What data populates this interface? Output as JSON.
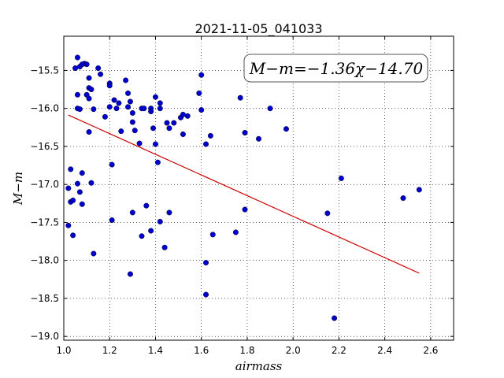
{
  "chart_data": {
    "type": "scatter",
    "title": "2021-11-05_041033",
    "xlabel": "airmass",
    "ylabel": "M−m",
    "annotation": "M−m=−1.36χ−14.70",
    "xlim": [
      1.0,
      2.7
    ],
    "ylim": [
      -19.05,
      -15.05
    ],
    "ylim_inverted": true,
    "xticks": [
      1.0,
      1.2,
      1.4,
      1.6,
      1.8,
      2.0,
      2.2,
      2.4,
      2.6
    ],
    "xtick_labels": [
      "1.0",
      "1.2",
      "1.4",
      "1.6",
      "1.8",
      "2.0",
      "2.2",
      "2.4",
      "2.6"
    ],
    "yticks": [
      -15.5,
      -16.0,
      -16.5,
      -17.0,
      -17.5,
      -18.0,
      -18.5,
      -19.0
    ],
    "ytick_labels": [
      "−15.5",
      "−16.0",
      "−16.5",
      "−17.0",
      "−17.5",
      "−18.0",
      "−18.5",
      "−19.0"
    ],
    "grid": true,
    "point_color": "#0000cc",
    "line_color": "#cc0000",
    "fit_line": {
      "slope": -1.36,
      "intercept": -14.7,
      "x_range": [
        1.02,
        2.55
      ]
    },
    "points": [
      [
        1.06,
        -15.33
      ],
      [
        1.05,
        -15.47
      ],
      [
        1.07,
        -15.45
      ],
      [
        1.09,
        -15.41
      ],
      [
        1.1,
        -15.42
      ],
      [
        1.08,
        -15.42
      ],
      [
        1.06,
        -15.82
      ],
      [
        1.1,
        -15.82
      ],
      [
        1.11,
        -15.6
      ],
      [
        1.11,
        -15.73
      ],
      [
        1.12,
        -15.75
      ],
      [
        1.11,
        -15.87
      ],
      [
        1.06,
        -16.0
      ],
      [
        1.07,
        -16.01
      ],
      [
        1.13,
        -16.01
      ],
      [
        1.15,
        -15.47
      ],
      [
        1.16,
        -15.55
      ],
      [
        1.2,
        -15.67
      ],
      [
        1.2,
        -15.7
      ],
      [
        1.18,
        -16.11
      ],
      [
        1.2,
        -15.98
      ],
      [
        1.22,
        -15.89
      ],
      [
        1.23,
        -16.0
      ],
      [
        1.24,
        -15.93
      ],
      [
        1.27,
        -15.63
      ],
      [
        1.28,
        -15.8
      ],
      [
        1.28,
        -15.98
      ],
      [
        1.29,
        -15.91
      ],
      [
        1.3,
        -16.06
      ],
      [
        1.3,
        -16.18
      ],
      [
        1.31,
        -16.29
      ],
      [
        1.25,
        -16.3
      ],
      [
        1.33,
        -16.46
      ],
      [
        1.34,
        -16.0
      ],
      [
        1.35,
        -16.0
      ],
      [
        1.38,
        -16.0
      ],
      [
        1.38,
        -16.04
      ],
      [
        1.4,
        -15.85
      ],
      [
        1.42,
        -15.93
      ],
      [
        1.42,
        -16.0
      ],
      [
        1.39,
        -16.26
      ],
      [
        1.45,
        -16.19
      ],
      [
        1.46,
        -16.26
      ],
      [
        1.48,
        -16.19
      ],
      [
        1.51,
        -16.12
      ],
      [
        1.52,
        -16.08
      ],
      [
        1.54,
        -16.1
      ],
      [
        1.52,
        -16.34
      ],
      [
        1.4,
        -16.47
      ],
      [
        1.41,
        -16.71
      ],
      [
        1.6,
        -15.56
      ],
      [
        1.59,
        -15.8
      ],
      [
        1.6,
        -16.02
      ],
      [
        1.62,
        -16.47
      ],
      [
        1.64,
        -16.36
      ],
      [
        1.77,
        -15.86
      ],
      [
        1.79,
        -16.32
      ],
      [
        1.85,
        -16.4
      ],
      [
        1.9,
        -16.0
      ],
      [
        1.97,
        -16.27
      ],
      [
        1.11,
        -16.31
      ],
      [
        1.03,
        -16.8
      ],
      [
        1.08,
        -16.85
      ],
      [
        1.02,
        -17.05
      ],
      [
        1.06,
        -16.99
      ],
      [
        1.12,
        -16.98
      ],
      [
        1.07,
        -17.1
      ],
      [
        1.03,
        -17.23
      ],
      [
        1.04,
        -17.21
      ],
      [
        1.08,
        -17.26
      ],
      [
        1.02,
        -17.54
      ],
      [
        1.04,
        -17.67
      ],
      [
        1.21,
        -16.74
      ],
      [
        1.21,
        -17.47
      ],
      [
        1.3,
        -17.37
      ],
      [
        1.36,
        -17.28
      ],
      [
        1.38,
        -17.61
      ],
      [
        1.34,
        -17.68
      ],
      [
        1.42,
        -17.49
      ],
      [
        1.46,
        -17.37
      ],
      [
        1.44,
        -17.83
      ],
      [
        1.13,
        -17.91
      ],
      [
        1.29,
        -18.18
      ],
      [
        1.62,
        -18.03
      ],
      [
        1.62,
        -18.45
      ],
      [
        1.65,
        -17.66
      ],
      [
        1.75,
        -17.63
      ],
      [
        1.79,
        -17.33
      ],
      [
        2.15,
        -17.38
      ],
      [
        2.21,
        -16.92
      ],
      [
        2.18,
        -18.76
      ],
      [
        2.48,
        -17.18
      ],
      [
        2.55,
        -17.07
      ]
    ]
  }
}
